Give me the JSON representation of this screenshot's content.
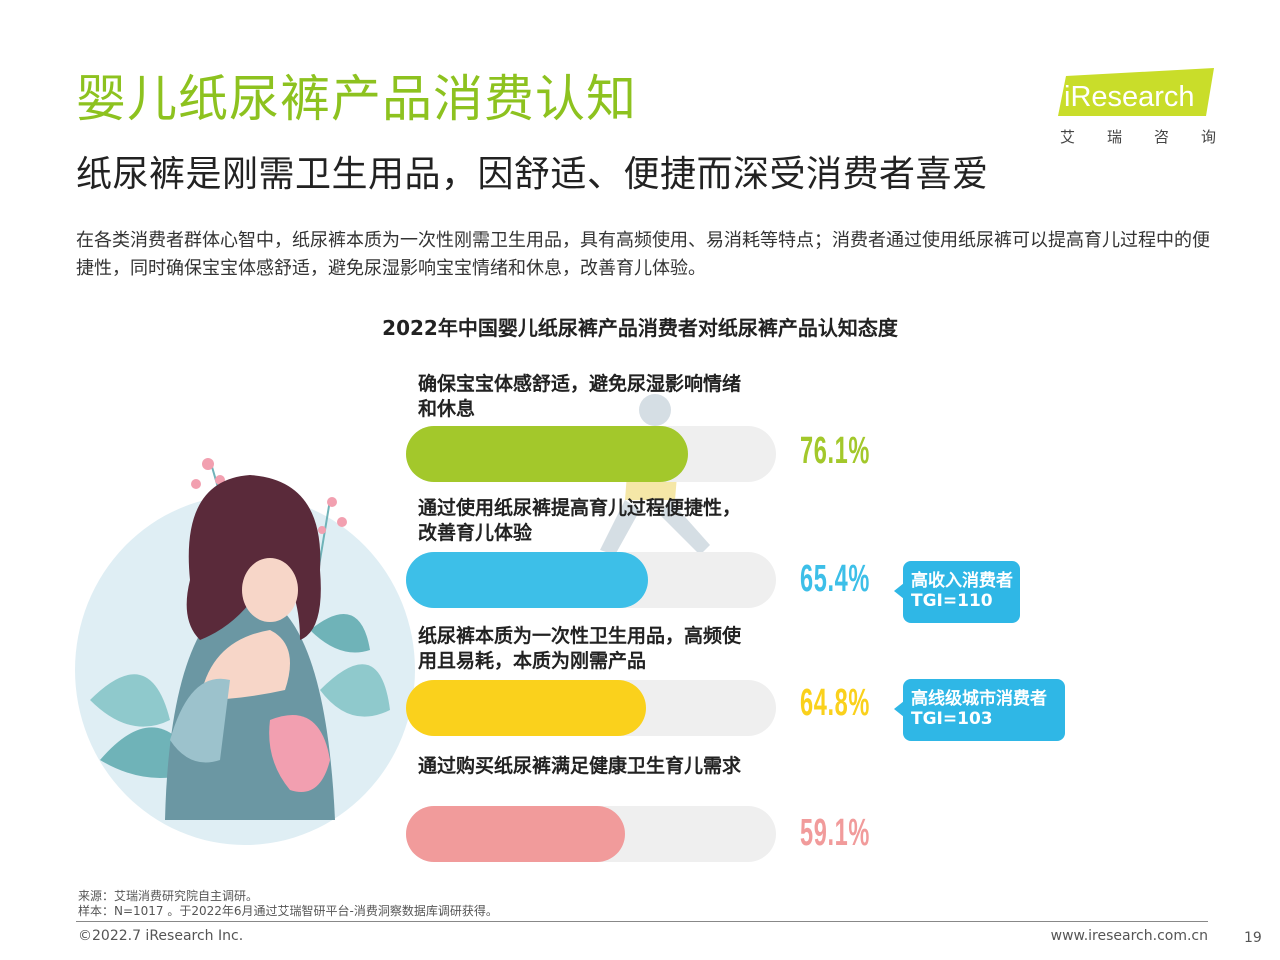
{
  "header": {
    "title": "婴儿纸尿裤产品消费认知",
    "subtitle": "纸尿裤是刚需卫生用品，因舒适、便捷而深受消费者喜爱",
    "description": "在各类消费者群体心智中，纸尿裤本质为一次性刚需卫生用品，具有高频使用、易消耗等特点；消费者通过使用纸尿裤可以提高育儿过程中的便捷性，同时确保宝宝体感舒适，避免尿湿影响宝宝情绪和休息，改善育儿体验。"
  },
  "logo": {
    "text": "iResearch",
    "chars": [
      "艾",
      "瑞",
      "咨",
      "询"
    ],
    "color": "#c9dd2a"
  },
  "chart_data": {
    "type": "bar",
    "orientation": "horizontal",
    "title": "2022年中国婴儿纸尿裤产品消费者对纸尿裤产品认知态度",
    "unit": "%",
    "xlim": [
      0,
      100
    ],
    "grid": false,
    "categories": [
      "确保宝宝体感舒适，避免尿湿影响情绪和休息",
      "通过使用纸尿裤提高育儿过程便捷性，改善育儿体验",
      "纸尿裤本质为一次性卫生用品，高频使用且易耗，本质为刚需产品",
      "通过购买纸尿裤满足健康卫生育儿需求"
    ],
    "values": [
      76.1,
      65.4,
      64.8,
      59.1
    ],
    "value_labels": [
      "76.1%",
      "65.4%",
      "64.8%",
      "59.1%"
    ],
    "colors": [
      "#a3c82b",
      "#3dbfe8",
      "#fad11c",
      "#f19b9b"
    ],
    "annotations": [
      {
        "category_index": 1,
        "line1": "高收入消费者",
        "line2": "TGI=110"
      },
      {
        "category_index": 2,
        "line1": "高线级城市消费者",
        "line2": "TGI=103"
      }
    ]
  },
  "footer": {
    "source": "来源：艾瑞消费研究院自主调研。",
    "sample": "样本：N=1017 。于2022年6月通过艾瑞智研平台-消费洞察数据库调研获得。",
    "copyright": "©2022.7 iResearch Inc.",
    "website": "www.iresearch.com.cn",
    "page": "19"
  }
}
